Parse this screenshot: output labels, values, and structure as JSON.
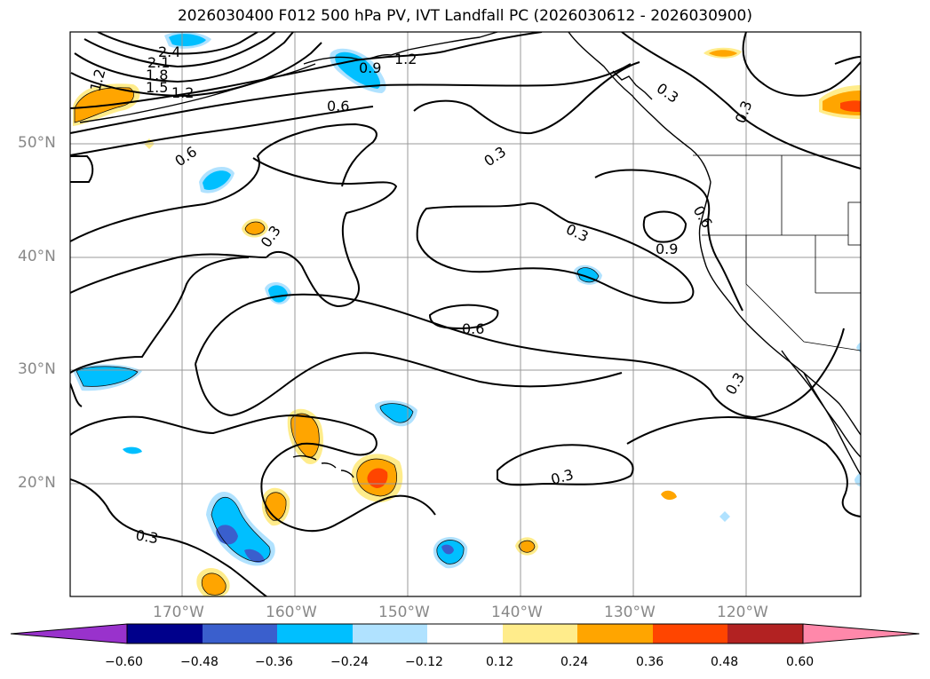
{
  "title": "2026030400 F012 500 hPa PV, IVT Landfall PC (2026030612 - 2026030900)",
  "lat_labels": [
    "50°N",
    "40°N",
    "30°N",
    "20°N"
  ],
  "lon_labels": [
    "170°W",
    "160°W",
    "150°W",
    "140°W",
    "130°W",
    "120°W"
  ],
  "contour_labels": [
    "2.4",
    "2.1",
    "1.8",
    "1.5",
    "1.2",
    "1.2",
    "0.9",
    "1.2",
    "0.6",
    "0.6",
    "0.3",
    "0.3",
    "0.6",
    "0.9",
    "0.3",
    "0.3",
    "0.6",
    "0.3",
    "0.3",
    "0.3",
    "0.3"
  ],
  "colorbar": {
    "ticks": [
      "−0.60",
      "−0.48",
      "−0.36",
      "−0.24",
      "−0.12",
      "0.12",
      "0.24",
      "0.36",
      "0.48",
      "0.60"
    ],
    "colors": [
      "#9932cc",
      "#00008b",
      "#3a5fcd",
      "#00bfff",
      "#b0e2ff",
      "#ffffff",
      "#ffec8b",
      "#ffa500",
      "#ff4500",
      "#b22222",
      "#ff88aa"
    ]
  },
  "colors": {
    "contour": "#000000",
    "grid": "#999999",
    "coast": "#000000",
    "label": "#888888"
  }
}
